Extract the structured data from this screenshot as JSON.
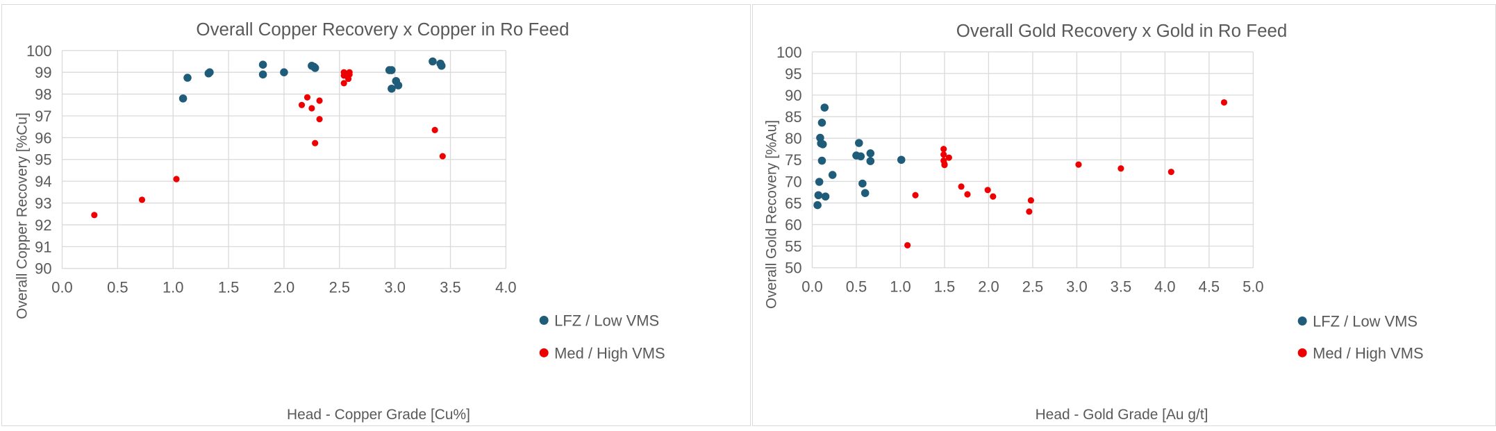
{
  "colors": {
    "lfz": "#1f5c7a",
    "med": "#ee0000",
    "grid": "#d9d9d9",
    "text": "#595959"
  },
  "chart_data": [
    {
      "type": "scatter",
      "title": "Overall Copper Recovery x Copper in Ro Feed",
      "xlabel": "Head - Copper Grade [Cu%]",
      "ylabel": "Overall Copper Recovery [%Cu]",
      "xlim": [
        0,
        4.0
      ],
      "ylim": [
        90,
        100
      ],
      "xticks": [
        "0.0",
        "0.5",
        "1.0",
        "1.5",
        "2.0",
        "2.5",
        "3.0",
        "3.5",
        "4.0"
      ],
      "yticks": [
        "90",
        "91",
        "92",
        "93",
        "94",
        "95",
        "96",
        "97",
        "98",
        "99",
        "100"
      ],
      "grid": true,
      "legend_position": "bottom-right",
      "series": [
        {
          "name": "LFZ / Low VMS",
          "color": "lfz",
          "points": [
            [
              1.09,
              97.8
            ],
            [
              1.13,
              98.75
            ],
            [
              1.32,
              98.95
            ],
            [
              1.33,
              99.0
            ],
            [
              1.81,
              99.35
            ],
            [
              1.81,
              98.9
            ],
            [
              2.0,
              99.0
            ],
            [
              2.25,
              99.3
            ],
            [
              2.27,
              99.25
            ],
            [
              2.28,
              99.2
            ],
            [
              2.95,
              99.1
            ],
            [
              2.97,
              99.1
            ],
            [
              2.97,
              98.25
            ],
            [
              3.01,
              98.6
            ],
            [
              3.03,
              98.4
            ],
            [
              3.34,
              99.5
            ],
            [
              3.41,
              99.4
            ],
            [
              3.42,
              99.3
            ]
          ]
        },
        {
          "name": "Med / High VMS",
          "color": "med",
          "points": [
            [
              0.29,
              92.45
            ],
            [
              0.72,
              93.15
            ],
            [
              1.03,
              94.1
            ],
            [
              2.16,
              97.5
            ],
            [
              2.21,
              97.85
            ],
            [
              2.25,
              97.35
            ],
            [
              2.28,
              95.75
            ],
            [
              2.32,
              97.7
            ],
            [
              2.32,
              96.85
            ],
            [
              2.54,
              99.0
            ],
            [
              2.54,
              98.85
            ],
            [
              2.54,
              98.5
            ],
            [
              2.58,
              98.7
            ],
            [
              2.59,
              98.9
            ],
            [
              2.59,
              99.0
            ],
            [
              3.36,
              96.35
            ],
            [
              3.43,
              95.15
            ]
          ]
        }
      ]
    },
    {
      "type": "scatter",
      "title": "Overall Gold Recovery x Gold in Ro Feed",
      "xlabel": "Head - Gold Grade [Au g/t]",
      "ylabel": "Overall Gold Recovery [%Au]",
      "xlim": [
        0,
        5.0
      ],
      "ylim": [
        50,
        100
      ],
      "xticks": [
        "0.0",
        "0.5",
        "1.0",
        "1.5",
        "2.0",
        "2.5",
        "3.0",
        "3.5",
        "4.0",
        "4.5",
        "5.0"
      ],
      "yticks": [
        "50",
        "55",
        "60",
        "65",
        "70",
        "75",
        "80",
        "85",
        "90",
        "95",
        "100"
      ],
      "grid": true,
      "legend_position": "bottom-right",
      "series": [
        {
          "name": "LFZ / Low VMS",
          "color": "lfz",
          "points": [
            [
              0.06,
              64.5
            ],
            [
              0.07,
              66.8
            ],
            [
              0.08,
              69.9
            ],
            [
              0.09,
              80.1
            ],
            [
              0.1,
              78.8
            ],
            [
              0.11,
              83.6
            ],
            [
              0.11,
              74.8
            ],
            [
              0.12,
              78.6
            ],
            [
              0.14,
              87.1
            ],
            [
              0.15,
              66.5
            ],
            [
              0.23,
              71.5
            ],
            [
              0.5,
              76.0
            ],
            [
              0.53,
              78.9
            ],
            [
              0.55,
              75.8
            ],
            [
              0.57,
              69.5
            ],
            [
              0.6,
              67.3
            ],
            [
              0.66,
              76.5
            ],
            [
              0.66,
              74.7
            ],
            [
              1.01,
              75.0
            ]
          ]
        },
        {
          "name": "Med / High VMS",
          "color": "med",
          "points": [
            [
              1.08,
              55.2
            ],
            [
              1.17,
              66.8
            ],
            [
              1.49,
              77.5
            ],
            [
              1.49,
              76.2
            ],
            [
              1.49,
              74.8
            ],
            [
              1.5,
              74.0
            ],
            [
              1.5,
              73.8
            ],
            [
              1.55,
              75.5
            ],
            [
              1.69,
              68.8
            ],
            [
              1.76,
              67.0
            ],
            [
              1.99,
              68.0
            ],
            [
              2.05,
              66.5
            ],
            [
              2.46,
              63.0
            ],
            [
              2.48,
              65.6
            ],
            [
              3.02,
              73.9
            ],
            [
              3.5,
              73.0
            ],
            [
              4.07,
              72.2
            ],
            [
              4.67,
              88.3
            ]
          ]
        }
      ]
    }
  ]
}
